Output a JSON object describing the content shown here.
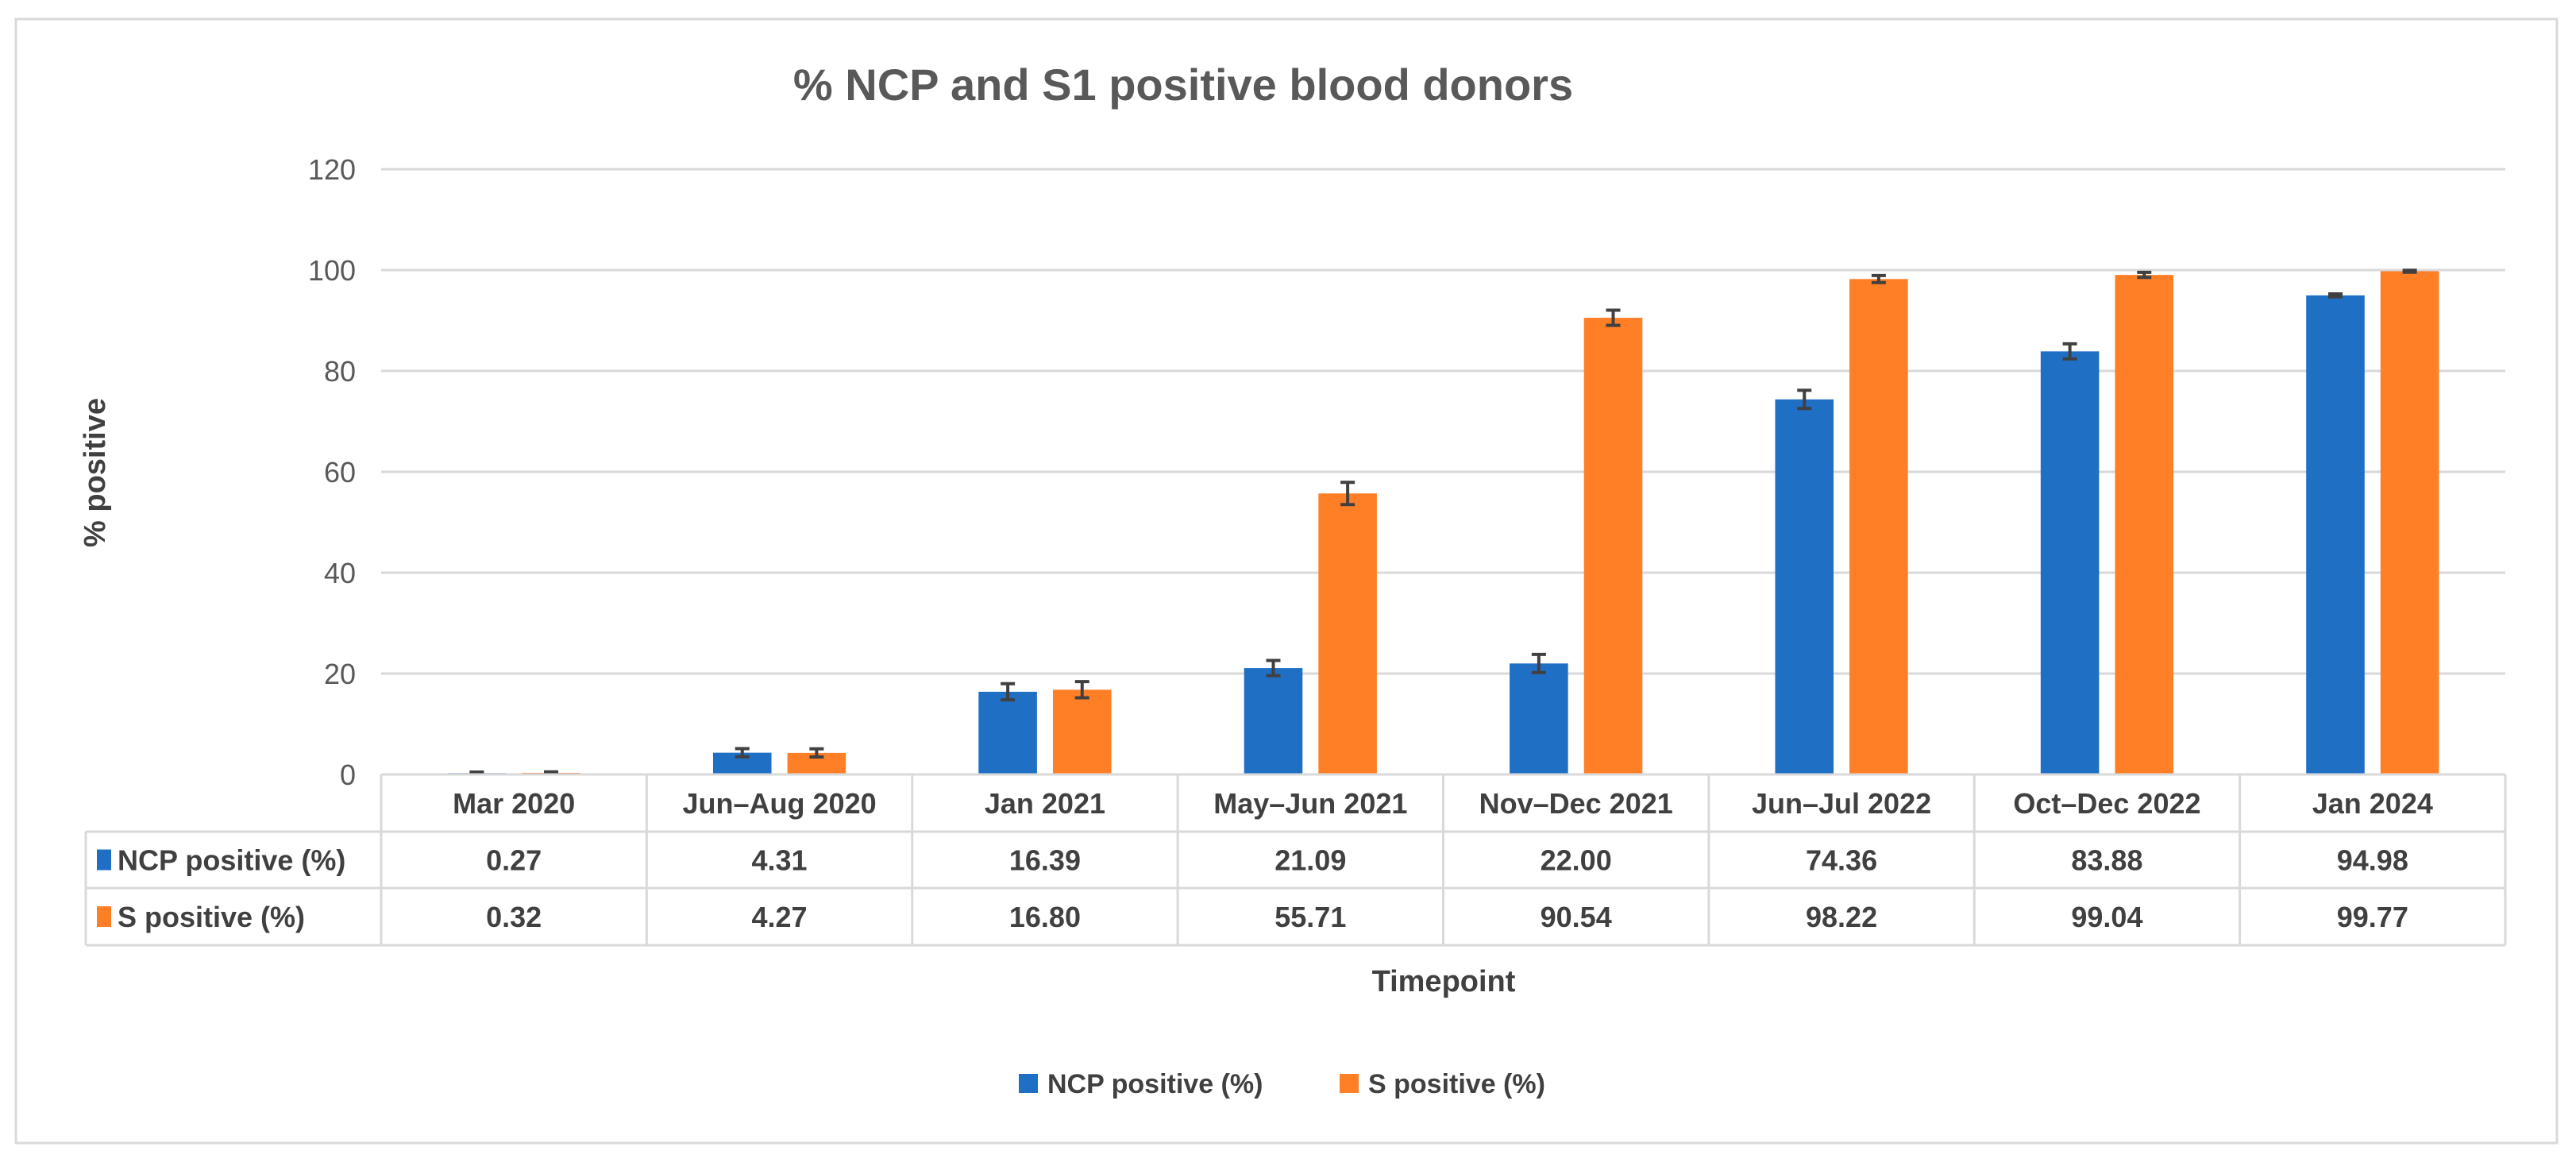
{
  "chart_data": {
    "type": "bar",
    "title": "% NCP and S1 positive blood donors",
    "xlabel": "Timepoint",
    "ylabel": "% positive",
    "ylim": [
      0,
      120
    ],
    "yticks": [
      "0",
      "20",
      "40",
      "60",
      "80",
      "100",
      "120"
    ],
    "grid": true,
    "legend_placement": "bottom",
    "categories": [
      "Mar 2020",
      "Jun–Aug 2020",
      "Jan 2021",
      "May–Jun 2021",
      "Nov–Dec 2021",
      "Jun–Jul 2022",
      "Oct–Dec 2022",
      "Jan 2024"
    ],
    "series": [
      {
        "name": "NCP positive (%)",
        "color": "#1F6FC5",
        "values": [
          0.27,
          4.31,
          16.39,
          21.09,
          22.0,
          74.36,
          83.88,
          94.98
        ],
        "labels": [
          "0.27",
          "4.31",
          "16.39",
          "21.09",
          "22.00",
          "74.36",
          "83.88",
          "94.98"
        ],
        "error": [
          0.2,
          0.8,
          1.6,
          1.5,
          1.8,
          1.8,
          1.5,
          0.3
        ]
      },
      {
        "name": "S positive (%)",
        "color": "#FF7F27",
        "values": [
          0.32,
          4.27,
          16.8,
          55.71,
          90.54,
          98.22,
          99.04,
          99.77
        ],
        "labels": [
          "0.32",
          "4.27",
          "16.80",
          "55.71",
          "90.54",
          "98.22",
          "99.04",
          "99.77"
        ],
        "error": [
          0.2,
          0.8,
          1.6,
          2.2,
          1.5,
          0.7,
          0.5,
          0.2
        ]
      }
    ],
    "data_table": true
  }
}
